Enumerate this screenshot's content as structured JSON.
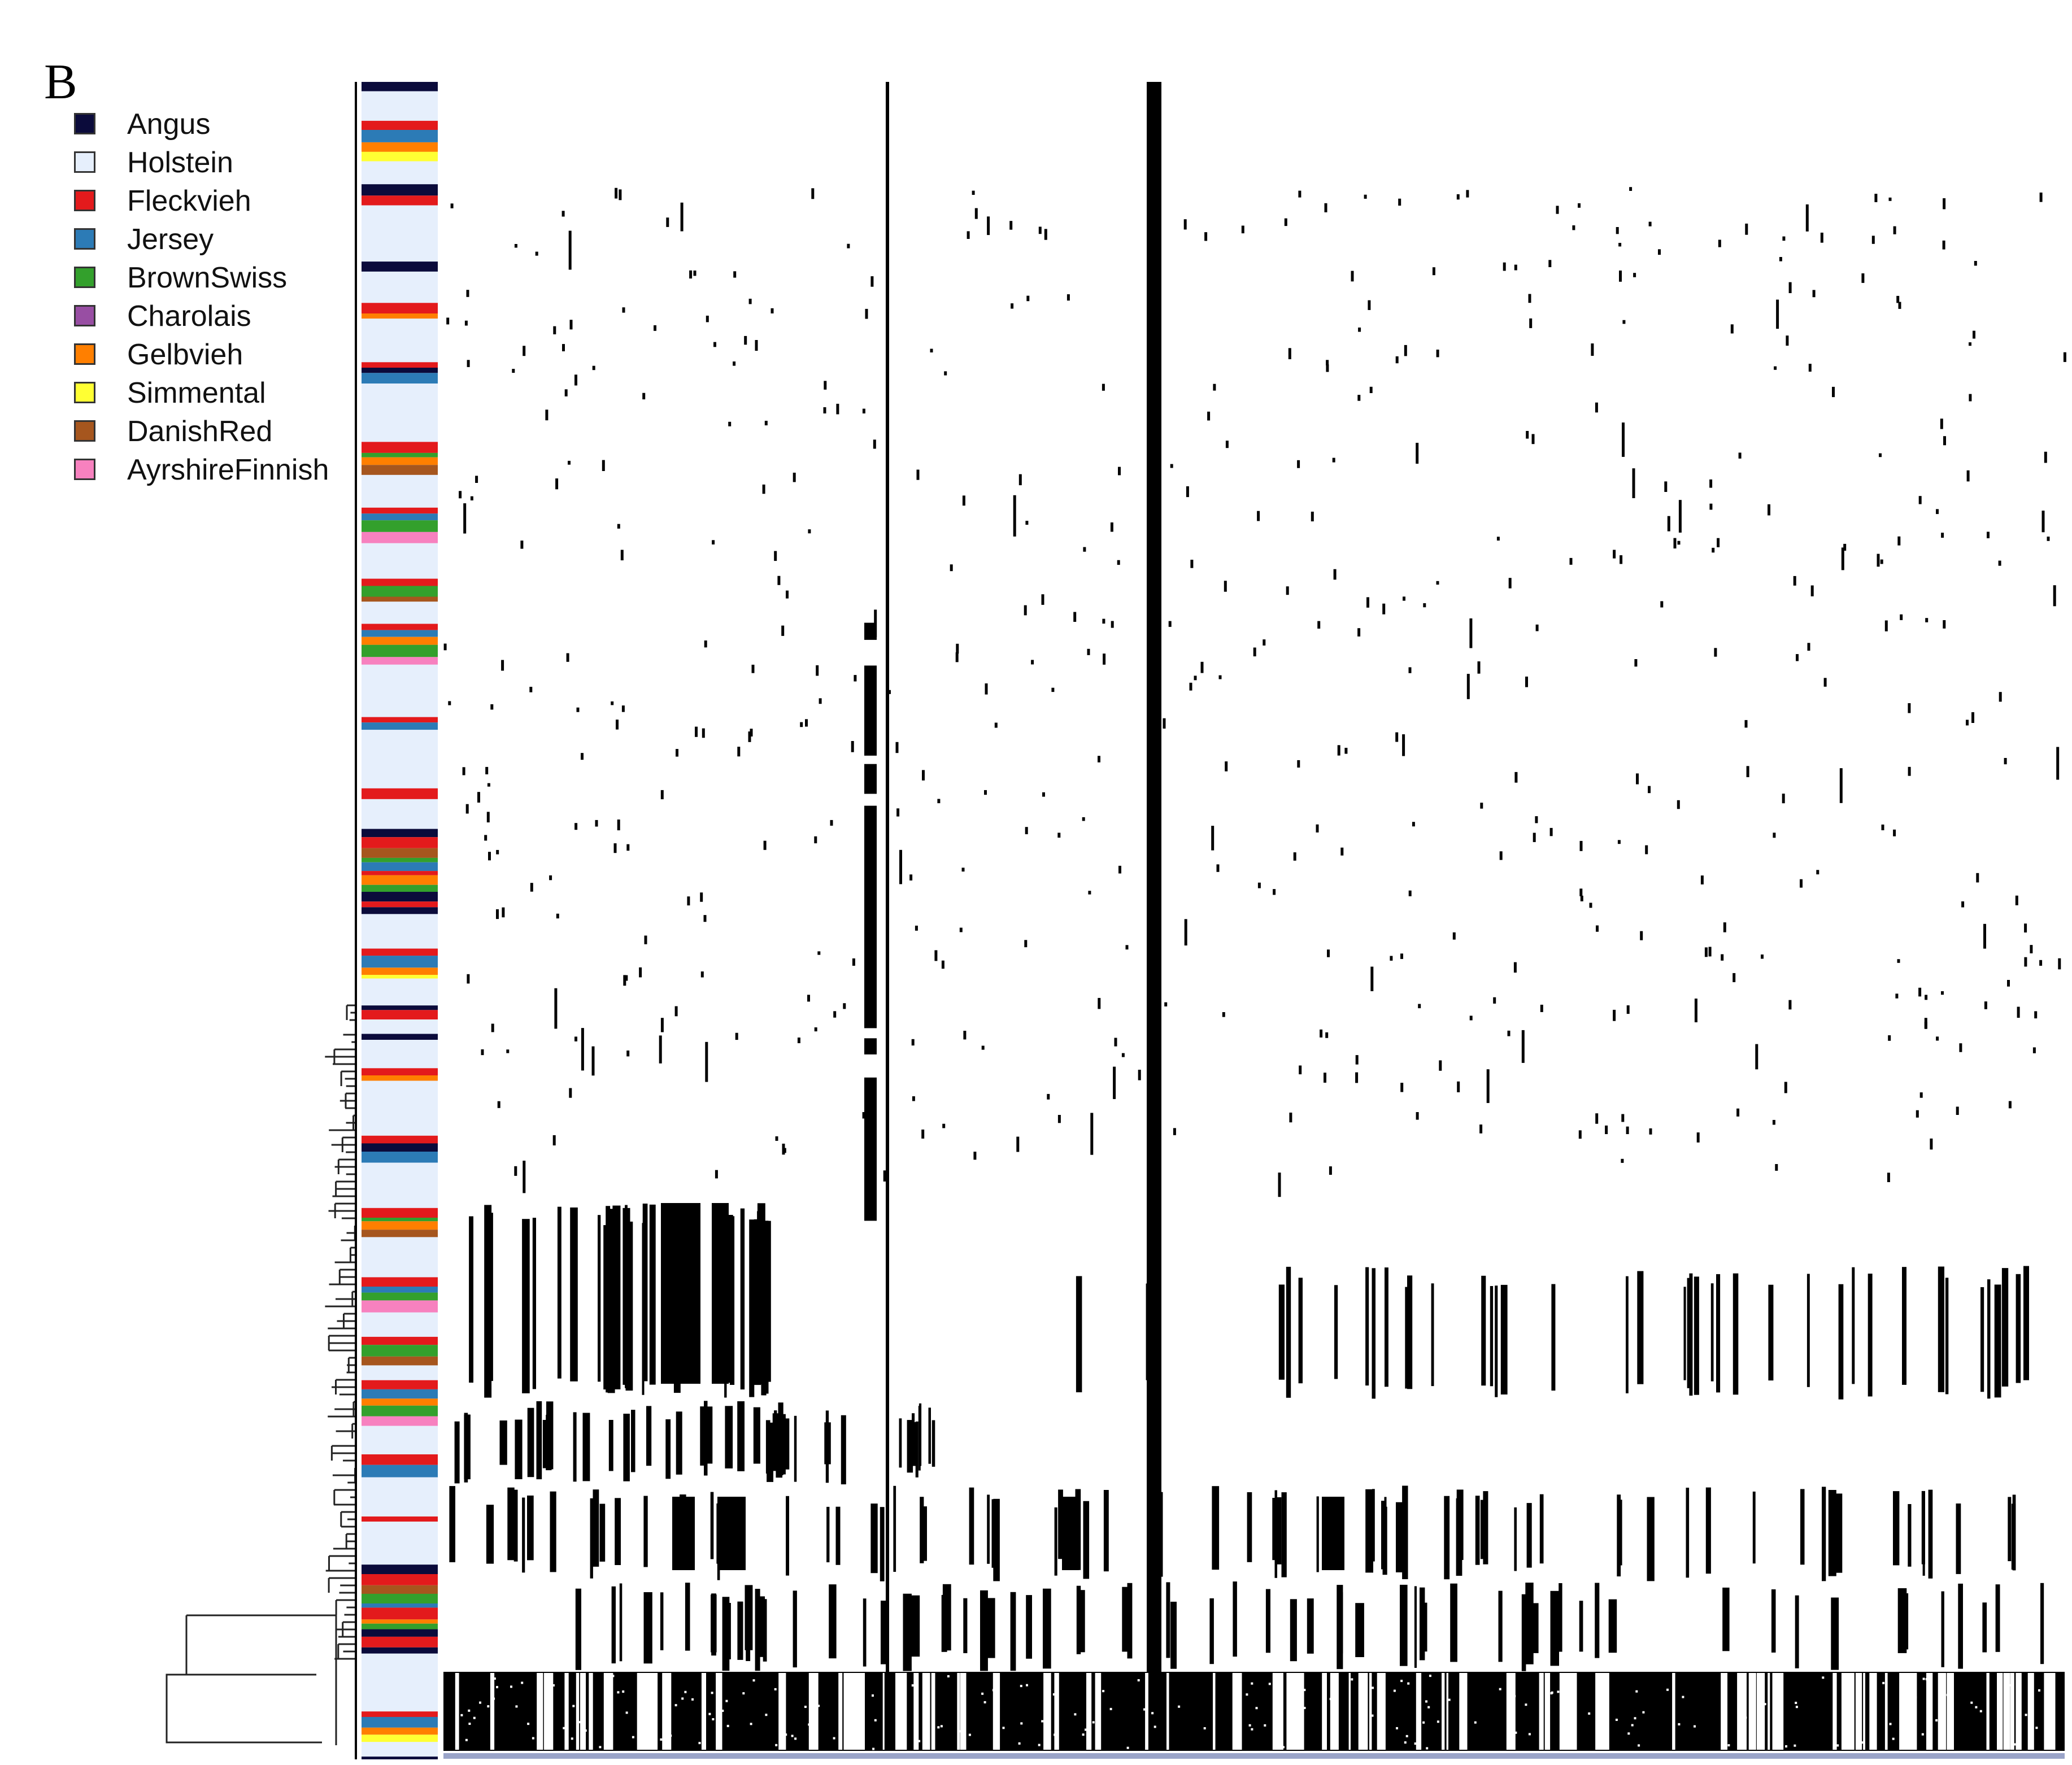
{
  "panel_label": "B",
  "legend": [
    {
      "label": "Angus",
      "color": "#0b0b3b"
    },
    {
      "label": "Holstein",
      "color": "#e6effc"
    },
    {
      "label": "Fleckvieh",
      "color": "#e31a1c"
    },
    {
      "label": "Jersey",
      "color": "#2c7bb6"
    },
    {
      "label": "BrownSwiss",
      "color": "#33a02c"
    },
    {
      "label": "Charolais",
      "color": "#984ea3"
    },
    {
      "label": "Gelbvieh",
      "color": "#ff7f00"
    },
    {
      "label": "Simmental",
      "color": "#ffff33"
    },
    {
      "label": "DanishRed",
      "color": "#a6561e"
    },
    {
      "label": "AyrshireFinnish",
      "color": "#f781bf"
    }
  ],
  "chart_data": {
    "type": "heatmap",
    "title": "",
    "xlabel": "",
    "ylabel": "",
    "description_values": "binary haplotype/genotype matrix (black = present); rows are animals ordered by hierarchical clustering, with breed color sidebar",
    "row_breed_sequence": [
      "Angus",
      "Holstein",
      "Fleckvieh",
      "Jersey",
      "Gelbvieh",
      "Simmental",
      "Holstein",
      "Angus",
      "Fleckvieh",
      "Holstein",
      "Angus",
      "Holstein",
      "Fleckvieh",
      "Gelbvieh",
      "Holstein",
      "Fleckvieh",
      "Angus",
      "Jersey",
      "Holstein",
      "Fleckvieh",
      "BrownSwiss",
      "Gelbvieh",
      "DanishRed",
      "Holstein",
      "Fleckvieh",
      "Jersey",
      "BrownSwiss",
      "AyrshireFinnish",
      "Holstein",
      "Fleckvieh",
      "BrownSwiss",
      "DanishRed",
      "Holstein",
      "Fleckvieh",
      "Jersey",
      "Gelbvieh",
      "BrownSwiss",
      "AyrshireFinnish",
      "Holstein",
      "Fleckvieh",
      "Jersey",
      "Holstein",
      "Fleckvieh",
      "Holstein",
      "Angus",
      "Fleckvieh",
      "DanishRed",
      "BrownSwiss",
      "Jersey",
      "Fleckvieh",
      "Gelbvieh",
      "BrownSwiss",
      "Angus",
      "Fleckvieh"
    ],
    "strong_columns": [
      5,
      12,
      30,
      44,
      70,
      82,
      90,
      118,
      150
    ]
  }
}
